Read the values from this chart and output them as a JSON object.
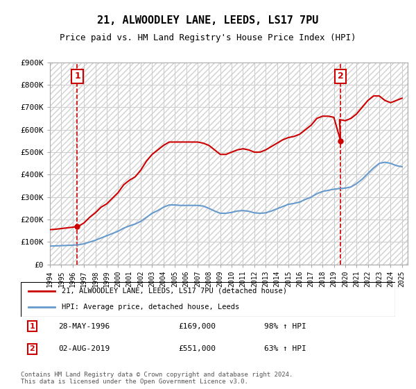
{
  "title": "21, ALWOODLEY LANE, LEEDS, LS17 7PU",
  "subtitle": "Price paid vs. HM Land Registry's House Price Index (HPI)",
  "xlabel": "",
  "ylabel": "",
  "ylim": [
    0,
    900000
  ],
  "yticks": [
    0,
    100000,
    200000,
    300000,
    400000,
    500000,
    600000,
    700000,
    800000,
    900000
  ],
  "ytick_labels": [
    "£0",
    "£100K",
    "£200K",
    "£300K",
    "£400K",
    "£500K",
    "£600K",
    "£700K",
    "£800K",
    "£900K"
  ],
  "xlim_start": 1994.0,
  "xlim_end": 2025.5,
  "sale1_x": 1996.41,
  "sale1_y": 169000,
  "sale1_label": "1",
  "sale2_x": 2019.585,
  "sale2_y": 551000,
  "sale2_label": "2",
  "line_color_red": "#cc0000",
  "line_color_blue": "#6699cc",
  "vline_color": "#cc0000",
  "marker_box_color": "#cc0000",
  "background_color": "#ffffff",
  "grid_color": "#cccccc",
  "hatch_color": "#e8e8e8",
  "legend_label_red": "21, ALWOODLEY LANE, LEEDS, LS17 7PU (detached house)",
  "legend_label_blue": "HPI: Average price, detached house, Leeds",
  "table_entries": [
    {
      "num": "1",
      "date": "28-MAY-1996",
      "price": "£169,000",
      "hpi": "98% ↑ HPI"
    },
    {
      "num": "2",
      "date": "02-AUG-2019",
      "price": "£551,000",
      "hpi": "63% ↑ HPI"
    }
  ],
  "footer": "Contains HM Land Registry data © Crown copyright and database right 2024.\nThis data is licensed under the Open Government Licence v3.0.",
  "red_hpi_line": {
    "x": [
      1994.0,
      1994.5,
      1995.0,
      1995.5,
      1996.0,
      1996.41,
      1996.5,
      1997.0,
      1997.5,
      1998.0,
      1998.5,
      1999.0,
      1999.5,
      2000.0,
      2000.5,
      2001.0,
      2001.5,
      2002.0,
      2002.5,
      2003.0,
      2003.5,
      2004.0,
      2004.5,
      2005.0,
      2005.5,
      2006.0,
      2006.5,
      2007.0,
      2007.5,
      2008.0,
      2008.5,
      2009.0,
      2009.5,
      2010.0,
      2010.5,
      2011.0,
      2011.5,
      2012.0,
      2012.5,
      2013.0,
      2013.5,
      2014.0,
      2014.5,
      2015.0,
      2015.5,
      2016.0,
      2016.5,
      2017.0,
      2017.5,
      2018.0,
      2018.5,
      2019.0,
      2019.585,
      2019.5,
      2020.0,
      2020.5,
      2021.0,
      2021.5,
      2022.0,
      2022.5,
      2023.0,
      2023.5,
      2024.0,
      2024.5,
      2025.0
    ],
    "y": [
      155000,
      157000,
      160000,
      163000,
      166000,
      169000,
      170000,
      185000,
      210000,
      230000,
      255000,
      270000,
      295000,
      320000,
      355000,
      375000,
      390000,
      420000,
      460000,
      490000,
      510000,
      530000,
      545000,
      545000,
      545000,
      545000,
      545000,
      545000,
      540000,
      530000,
      510000,
      490000,
      490000,
      500000,
      510000,
      515000,
      510000,
      500000,
      500000,
      510000,
      525000,
      540000,
      555000,
      565000,
      570000,
      580000,
      600000,
      620000,
      650000,
      660000,
      660000,
      655000,
      551000,
      645000,
      640000,
      650000,
      670000,
      700000,
      730000,
      750000,
      750000,
      730000,
      720000,
      730000,
      740000
    ]
  },
  "blue_hpi_line": {
    "x": [
      1994.0,
      1994.5,
      1995.0,
      1995.5,
      1996.0,
      1996.5,
      1997.0,
      1997.5,
      1998.0,
      1998.5,
      1999.0,
      1999.5,
      2000.0,
      2000.5,
      2001.0,
      2001.5,
      2002.0,
      2002.5,
      2003.0,
      2003.5,
      2004.0,
      2004.5,
      2005.0,
      2005.5,
      2006.0,
      2006.5,
      2007.0,
      2007.5,
      2008.0,
      2008.5,
      2009.0,
      2009.5,
      2010.0,
      2010.5,
      2011.0,
      2011.5,
      2012.0,
      2012.5,
      2013.0,
      2013.5,
      2014.0,
      2014.5,
      2015.0,
      2015.5,
      2016.0,
      2016.5,
      2017.0,
      2017.5,
      2018.0,
      2018.5,
      2019.0,
      2019.5,
      2020.0,
      2020.5,
      2021.0,
      2021.5,
      2022.0,
      2022.5,
      2023.0,
      2023.5,
      2024.0,
      2024.5,
      2025.0
    ],
    "y": [
      82000,
      83000,
      84000,
      85000,
      86000,
      88000,
      92000,
      100000,
      108000,
      118000,
      128000,
      138000,
      148000,
      162000,
      172000,
      180000,
      192000,
      210000,
      228000,
      240000,
      255000,
      265000,
      265000,
      263000,
      263000,
      263000,
      263000,
      260000,
      250000,
      238000,
      228000,
      228000,
      232000,
      238000,
      240000,
      237000,
      230000,
      228000,
      230000,
      238000,
      248000,
      258000,
      268000,
      272000,
      278000,
      290000,
      300000,
      315000,
      325000,
      330000,
      335000,
      338000,
      340000,
      345000,
      360000,
      380000,
      405000,
      430000,
      450000,
      455000,
      450000,
      440000,
      435000
    ]
  }
}
